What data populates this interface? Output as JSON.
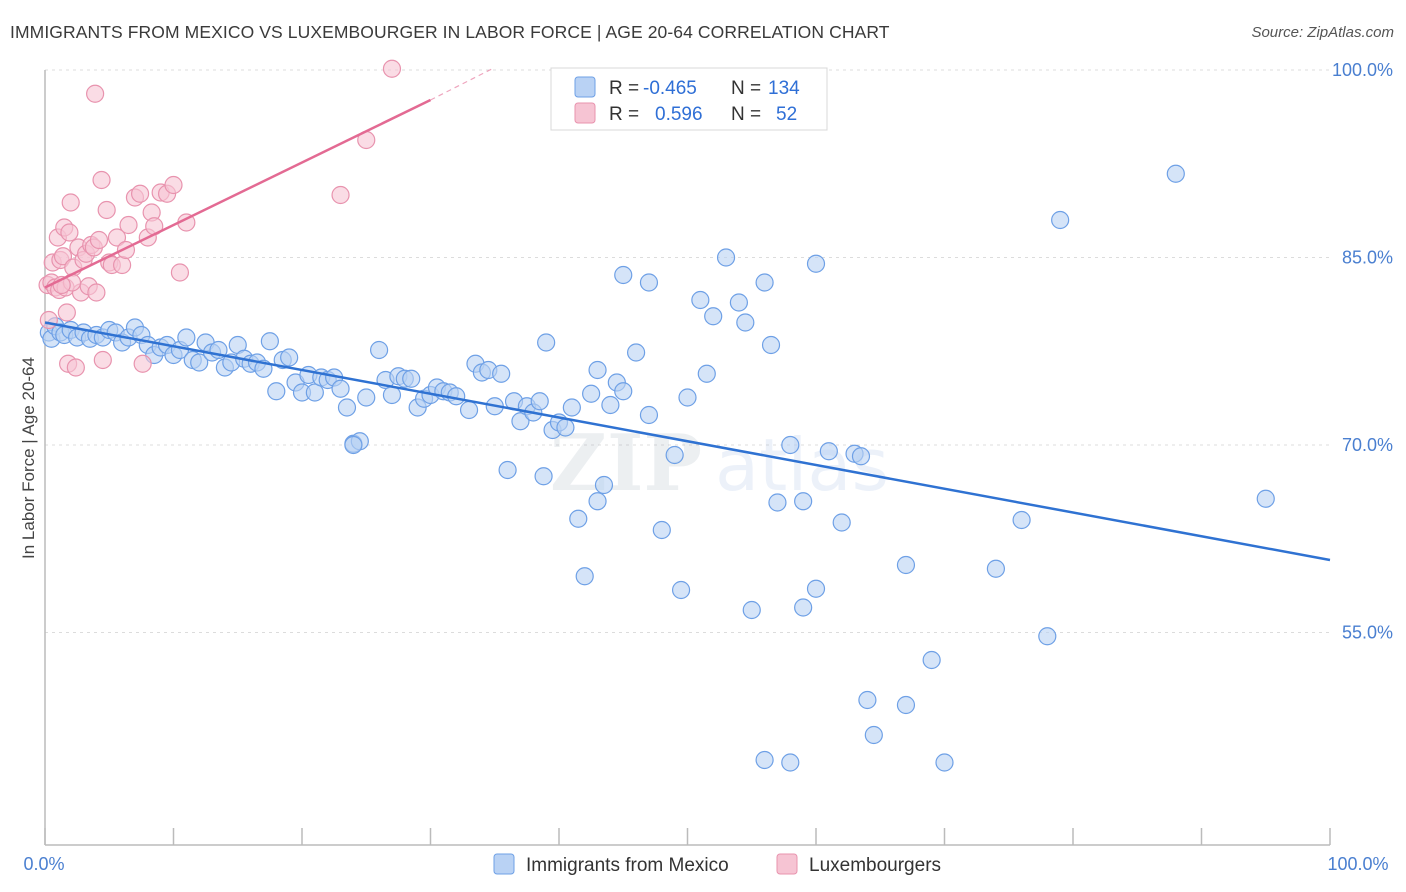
{
  "title": "IMMIGRANTS FROM MEXICO VS LUXEMBOURGER IN LABOR FORCE | AGE 20-64 CORRELATION CHART",
  "source": "Source: ZipAtlas.com",
  "watermark": "ZIPatlas",
  "legend": {
    "rows": [
      {
        "r_label": "R =",
        "r_value": "-0.465",
        "n_label": "N =",
        "n_value": "134",
        "color": "#aac8f0"
      },
      {
        "r_label": "R =",
        "r_value": "0.596",
        "n_label": "N =",
        "n_value": "52",
        "color": "#f4b6c8"
      }
    ]
  },
  "chart_data": {
    "type": "scatter",
    "xlabel": "",
    "ylabel": "In Labor Force | Age 20-64",
    "xlim": [
      0,
      100
    ],
    "ylim": [
      38,
      100
    ],
    "x_tick_labels": [
      "0.0%",
      "100.0%"
    ],
    "y_ticks": [
      55,
      70,
      85,
      100
    ],
    "y_tick_labels": [
      "55.0%",
      "70.0%",
      "85.0%",
      "100.0%"
    ],
    "grid": true,
    "legend_position": "bottom",
    "series": [
      {
        "name": "Immigrants from Mexico",
        "color": "#6ea0e6",
        "fill": "#b9d2f4",
        "trend": {
          "x": [
            0,
            100
          ],
          "y": [
            79.8,
            60.8
          ],
          "color": "#2f72d2"
        },
        "points": [
          [
            0.3,
            79
          ],
          [
            0.5,
            78.5
          ],
          [
            0.8,
            79.5
          ],
          [
            1.2,
            79
          ],
          [
            1.5,
            78.8
          ],
          [
            2,
            79.2
          ],
          [
            2.5,
            78.6
          ],
          [
            3,
            79
          ],
          [
            3.5,
            78.5
          ],
          [
            4,
            78.8
          ],
          [
            4.5,
            78.6
          ],
          [
            5,
            79.2
          ],
          [
            5.5,
            79
          ],
          [
            6,
            78.2
          ],
          [
            6.5,
            78.6
          ],
          [
            7,
            79.4
          ],
          [
            7.5,
            78.8
          ],
          [
            8,
            78
          ],
          [
            8.5,
            77.2
          ],
          [
            9,
            77.8
          ],
          [
            9.5,
            78
          ],
          [
            10,
            77.2
          ],
          [
            10.5,
            77.6
          ],
          [
            11,
            78.6
          ],
          [
            11.5,
            76.8
          ],
          [
            12,
            76.6
          ],
          [
            12.5,
            78.2
          ],
          [
            13,
            77.4
          ],
          [
            13.5,
            77.6
          ],
          [
            14,
            76.2
          ],
          [
            14.5,
            76.6
          ],
          [
            15,
            78
          ],
          [
            15.5,
            76.9
          ],
          [
            16,
            76.5
          ],
          [
            16.5,
            76.6
          ],
          [
            17,
            76.1
          ],
          [
            17.5,
            78.3
          ],
          [
            18,
            74.3
          ],
          [
            18.5,
            76.8
          ],
          [
            19,
            77
          ],
          [
            19.5,
            75
          ],
          [
            20,
            74.2
          ],
          [
            20.5,
            75.6
          ],
          [
            21,
            74.2
          ],
          [
            21.5,
            75.4
          ],
          [
            22,
            75.2
          ],
          [
            22.5,
            75.4
          ],
          [
            23,
            74.5
          ],
          [
            23.5,
            73
          ],
          [
            24,
            70.1
          ],
          [
            24.5,
            70.3
          ],
          [
            25,
            73.8
          ],
          [
            26,
            77.6
          ],
          [
            26.5,
            75.2
          ],
          [
            27,
            74
          ],
          [
            27.5,
            75.5
          ],
          [
            28,
            75.3
          ],
          [
            28.5,
            75.3
          ],
          [
            29,
            73
          ],
          [
            29.5,
            73.7
          ],
          [
            30,
            74
          ],
          [
            30.5,
            74.6
          ],
          [
            31,
            74.3
          ],
          [
            31.5,
            74.2
          ],
          [
            32,
            73.9
          ],
          [
            33,
            72.8
          ],
          [
            33.5,
            76.5
          ],
          [
            34,
            75.8
          ],
          [
            34.5,
            76
          ],
          [
            35,
            73.1
          ],
          [
            35.5,
            75.7
          ],
          [
            36,
            68
          ],
          [
            36.5,
            73.5
          ],
          [
            37,
            71.9
          ],
          [
            37.5,
            73.1
          ],
          [
            38,
            72.6
          ],
          [
            38.5,
            73.5
          ],
          [
            38.8,
            67.5
          ],
          [
            39,
            78.2
          ],
          [
            39.5,
            71.2
          ],
          [
            40,
            71.8
          ],
          [
            40.5,
            71.4
          ],
          [
            41,
            73
          ],
          [
            41.5,
            64.1
          ],
          [
            42,
            59.5
          ],
          [
            42.5,
            74.1
          ],
          [
            43,
            76
          ],
          [
            43,
            65.5
          ],
          [
            43.5,
            66.8
          ],
          [
            44,
            73.2
          ],
          [
            44.5,
            75
          ],
          [
            45,
            83.6
          ],
          [
            45,
            74.3
          ],
          [
            46,
            77.4
          ],
          [
            47,
            83
          ],
          [
            47,
            72.4
          ],
          [
            48,
            63.2
          ],
          [
            49,
            69.2
          ],
          [
            49.5,
            58.4
          ],
          [
            50,
            73.8
          ],
          [
            51,
            81.6
          ],
          [
            51.5,
            75.7
          ],
          [
            52,
            80.3
          ],
          [
            53,
            85
          ],
          [
            54,
            81.4
          ],
          [
            54.5,
            79.8
          ],
          [
            55,
            56.8
          ],
          [
            56,
            83
          ],
          [
            56,
            44.8
          ],
          [
            56.5,
            78
          ],
          [
            57,
            65.4
          ],
          [
            58,
            70
          ],
          [
            59,
            65.5
          ],
          [
            59,
            57
          ],
          [
            60,
            84.5
          ],
          [
            60,
            58.5
          ],
          [
            61,
            69.5
          ],
          [
            62,
            63.8
          ],
          [
            63,
            69.3
          ],
          [
            63.5,
            69.1
          ],
          [
            64,
            49.6
          ],
          [
            64.5,
            46.8
          ],
          [
            67,
            49.2
          ],
          [
            67,
            60.4
          ],
          [
            69,
            52.8
          ],
          [
            70,
            44.6
          ],
          [
            74,
            60.1
          ],
          [
            76,
            64
          ],
          [
            78,
            54.7
          ],
          [
            79,
            88
          ],
          [
            88,
            91.7
          ],
          [
            95,
            65.7
          ],
          [
            24,
            70
          ],
          [
            58,
            44.6
          ]
        ]
      },
      {
        "name": "Luxembourgers",
        "color": "#e893ae",
        "fill": "#f6c4d3",
        "trend": {
          "x": [
            0,
            30
          ],
          "y": [
            82.6,
            97.6
          ],
          "dash_to": [
            35,
            100.2
          ],
          "color": "#e36a93"
        },
        "points": [
          [
            0.2,
            82.8
          ],
          [
            0.3,
            80
          ],
          [
            0.5,
            83
          ],
          [
            0.6,
            84.6
          ],
          [
            0.8,
            82.6
          ],
          [
            1,
            86.6
          ],
          [
            1.1,
            82.4
          ],
          [
            1.2,
            84.8
          ],
          [
            1.4,
            85.1
          ],
          [
            1.5,
            87.4
          ],
          [
            1.6,
            82.6
          ],
          [
            1.7,
            80.6
          ],
          [
            1.8,
            76.5
          ],
          [
            1.9,
            87
          ],
          [
            2,
            89.4
          ],
          [
            2.2,
            84.2
          ],
          [
            2.4,
            76.2
          ],
          [
            2.6,
            85.8
          ],
          [
            2.8,
            82.2
          ],
          [
            3,
            84.8
          ],
          [
            3.2,
            85.3
          ],
          [
            3.4,
            82.7
          ],
          [
            3.6,
            86
          ],
          [
            3.8,
            85.8
          ],
          [
            4,
            82.2
          ],
          [
            4.2,
            86.4
          ],
          [
            4.4,
            91.2
          ],
          [
            4.5,
            76.8
          ],
          [
            4.8,
            88.8
          ],
          [
            5,
            84.6
          ],
          [
            5.2,
            84.4
          ],
          [
            5.6,
            86.6
          ],
          [
            6,
            84.4
          ],
          [
            6.3,
            85.6
          ],
          [
            6.5,
            87.6
          ],
          [
            7,
            89.8
          ],
          [
            7.4,
            90.1
          ],
          [
            7.6,
            76.5
          ],
          [
            8,
            86.6
          ],
          [
            8.3,
            88.6
          ],
          [
            8.5,
            87.5
          ],
          [
            9,
            90.2
          ],
          [
            9.5,
            90.1
          ],
          [
            10,
            90.8
          ],
          [
            10.5,
            83.8
          ],
          [
            11,
            87.8
          ],
          [
            3.9,
            98.1
          ],
          [
            27,
            100.1
          ],
          [
            23,
            90
          ],
          [
            25,
            94.4
          ],
          [
            2.1,
            83
          ],
          [
            1.3,
            82.8
          ]
        ]
      }
    ]
  }
}
